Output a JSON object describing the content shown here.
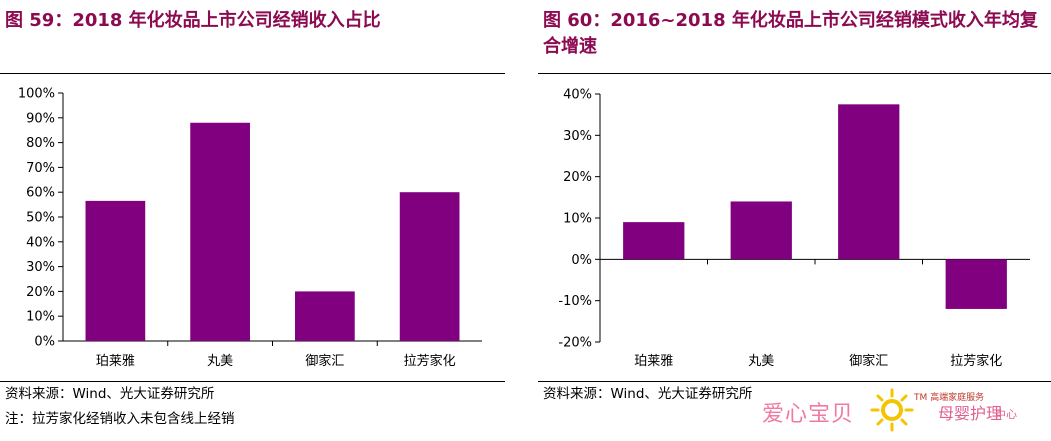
{
  "charts": {
    "left": {
      "title": "图 59：2018 年化妆品上市公司经销收入占比",
      "source": "资料来源：Wind、光大证券研究所",
      "note": "注：拉芳家化经销收入未包含线上经销"
    },
    "right": {
      "title": "图 60：2016~2018 年化妆品上市公司经销模式收入年均复合增速",
      "source": "资料来源：Wind、光大证券研究所"
    }
  },
  "chart_data": [
    {
      "type": "bar",
      "title": "图 59：2018 年化妆品上市公司经销收入占比",
      "categories": [
        "珀莱雅",
        "丸美",
        "御家汇",
        "拉芳家化"
      ],
      "values": [
        56.5,
        88,
        20,
        60
      ],
      "unit": "%",
      "ylim": [
        0,
        100
      ],
      "yticks": [
        0,
        10,
        20,
        30,
        40,
        50,
        60,
        70,
        80,
        90,
        100
      ],
      "ytick_labels": [
        "0%",
        "10%",
        "20%",
        "30%",
        "40%",
        "50%",
        "60%",
        "70%",
        "80%",
        "90%",
        "100%"
      ],
      "bar_color": "#800080",
      "grid": false,
      "legend": "none"
    },
    {
      "type": "bar",
      "title": "图 60：2016~2018 年化妆品上市公司经销模式收入年均复合增速",
      "categories": [
        "珀莱雅",
        "丸美",
        "御家汇",
        "拉芳家化"
      ],
      "values": [
        9,
        14,
        37.5,
        -12
      ],
      "unit": "%",
      "ylim": [
        -20,
        40
      ],
      "yticks": [
        -20,
        -10,
        0,
        10,
        20,
        30,
        40
      ],
      "ytick_labels": [
        "-20%",
        "-10%",
        "0%",
        "10%",
        "20%",
        "30%",
        "40%"
      ],
      "bar_color": "#800080",
      "grid": false,
      "legend": "none"
    }
  ],
  "watermark": {
    "brand": "爱心宝贝",
    "tm_line": "TM 高端家庭服务",
    "service": "母婴护理",
    "service_suffix": "中心",
    "colors": {
      "pink": "#f07aa0",
      "gold": "#f5c400"
    }
  }
}
